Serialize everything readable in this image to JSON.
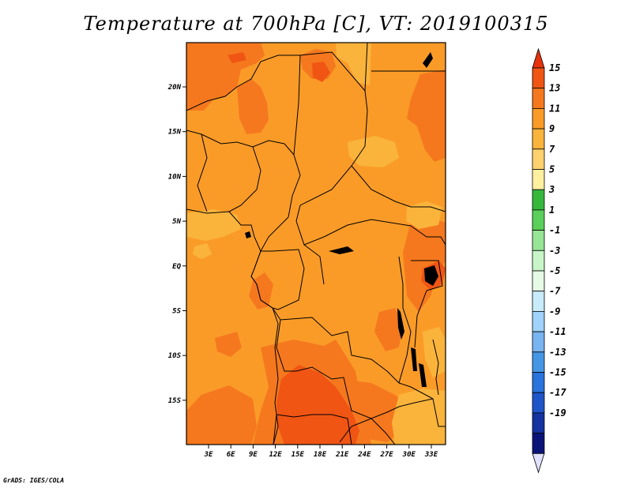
{
  "title": "Temperature at 700hPa [C], VT: 2019100315",
  "credit": "GrADS: IGES/COLA",
  "map": {
    "variable": "Temperature",
    "level": "700hPa",
    "units": "C",
    "valid_time": "2019100315",
    "lat_ticks": [
      "20N",
      "15N",
      "10N",
      "5N",
      "EQ",
      "5S",
      "10S",
      "15S"
    ],
    "lon_ticks": [
      "3E",
      "6E",
      "9E",
      "12E",
      "15E",
      "18E",
      "21E",
      "24E",
      "27E",
      "30E",
      "33E"
    ]
  },
  "colorbar": {
    "labels": [
      "15",
      "13",
      "11",
      "9",
      "7",
      "5",
      "3",
      "1",
      "-1",
      "-3",
      "-5",
      "-7",
      "-9",
      "-11",
      "-13",
      "-15",
      "-17",
      "-19"
    ],
    "colors": [
      "#e8320a",
      "#f05514",
      "#f5781e",
      "#fa9b28",
      "#fab43c",
      "#fdd26e",
      "#fff0a0",
      "#36b83c",
      "#5ad05a",
      "#96e696",
      "#c8f5c8",
      "#e6fae6",
      "#c8ebfa",
      "#a0d2fa",
      "#78b4f0",
      "#4696e6",
      "#2873dc",
      "#1e55c8",
      "#1432a0",
      "#0a1478",
      "#e0e0ff"
    ]
  }
}
